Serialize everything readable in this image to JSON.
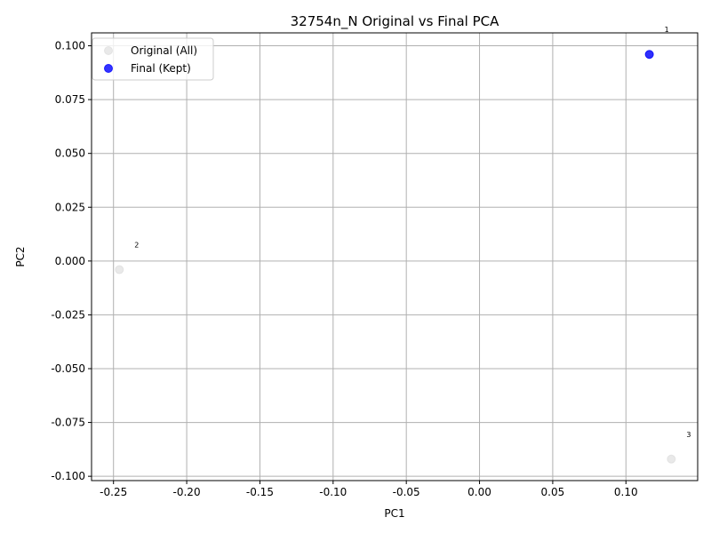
{
  "chart_data": {
    "type": "scatter",
    "title": "32754n_N Original vs Final PCA",
    "xlabel": "PC1",
    "ylabel": "PC2",
    "xlim": [
      -0.265,
      0.149
    ],
    "ylim": [
      -0.102,
      0.106
    ],
    "xticks": [
      "-0.25",
      "-0.20",
      "-0.15",
      "-0.10",
      "-0.05",
      "0.00",
      "0.05",
      "0.10"
    ],
    "xtick_values": [
      -0.25,
      -0.2,
      -0.15,
      -0.1,
      -0.05,
      0.0,
      0.05,
      0.1
    ],
    "yticks": [
      "-0.100",
      "-0.075",
      "-0.050",
      "-0.025",
      "0.000",
      "0.025",
      "0.050",
      "0.075",
      "0.100"
    ],
    "ytick_values": [
      -0.1,
      -0.075,
      -0.05,
      -0.025,
      0.0,
      0.025,
      0.05,
      0.075,
      0.1
    ],
    "grid": true,
    "legend_position": "upper-left",
    "series": [
      {
        "name": "Original (All)",
        "color": "#d3d3d3",
        "points": [
          {
            "x": 0.116,
            "y": 0.096
          },
          {
            "x": -0.246,
            "y": -0.004
          },
          {
            "x": 0.131,
            "y": -0.092
          }
        ]
      },
      {
        "name": "Final (Kept)",
        "color": "#0000ff",
        "points": [
          {
            "x": 0.116,
            "y": 0.096
          }
        ]
      }
    ],
    "annotations": [
      {
        "text": "1",
        "x": 0.116,
        "y": 0.096
      },
      {
        "text": "2",
        "x": -0.246,
        "y": -0.004
      },
      {
        "text": "3",
        "x": 0.131,
        "y": -0.092
      }
    ]
  }
}
